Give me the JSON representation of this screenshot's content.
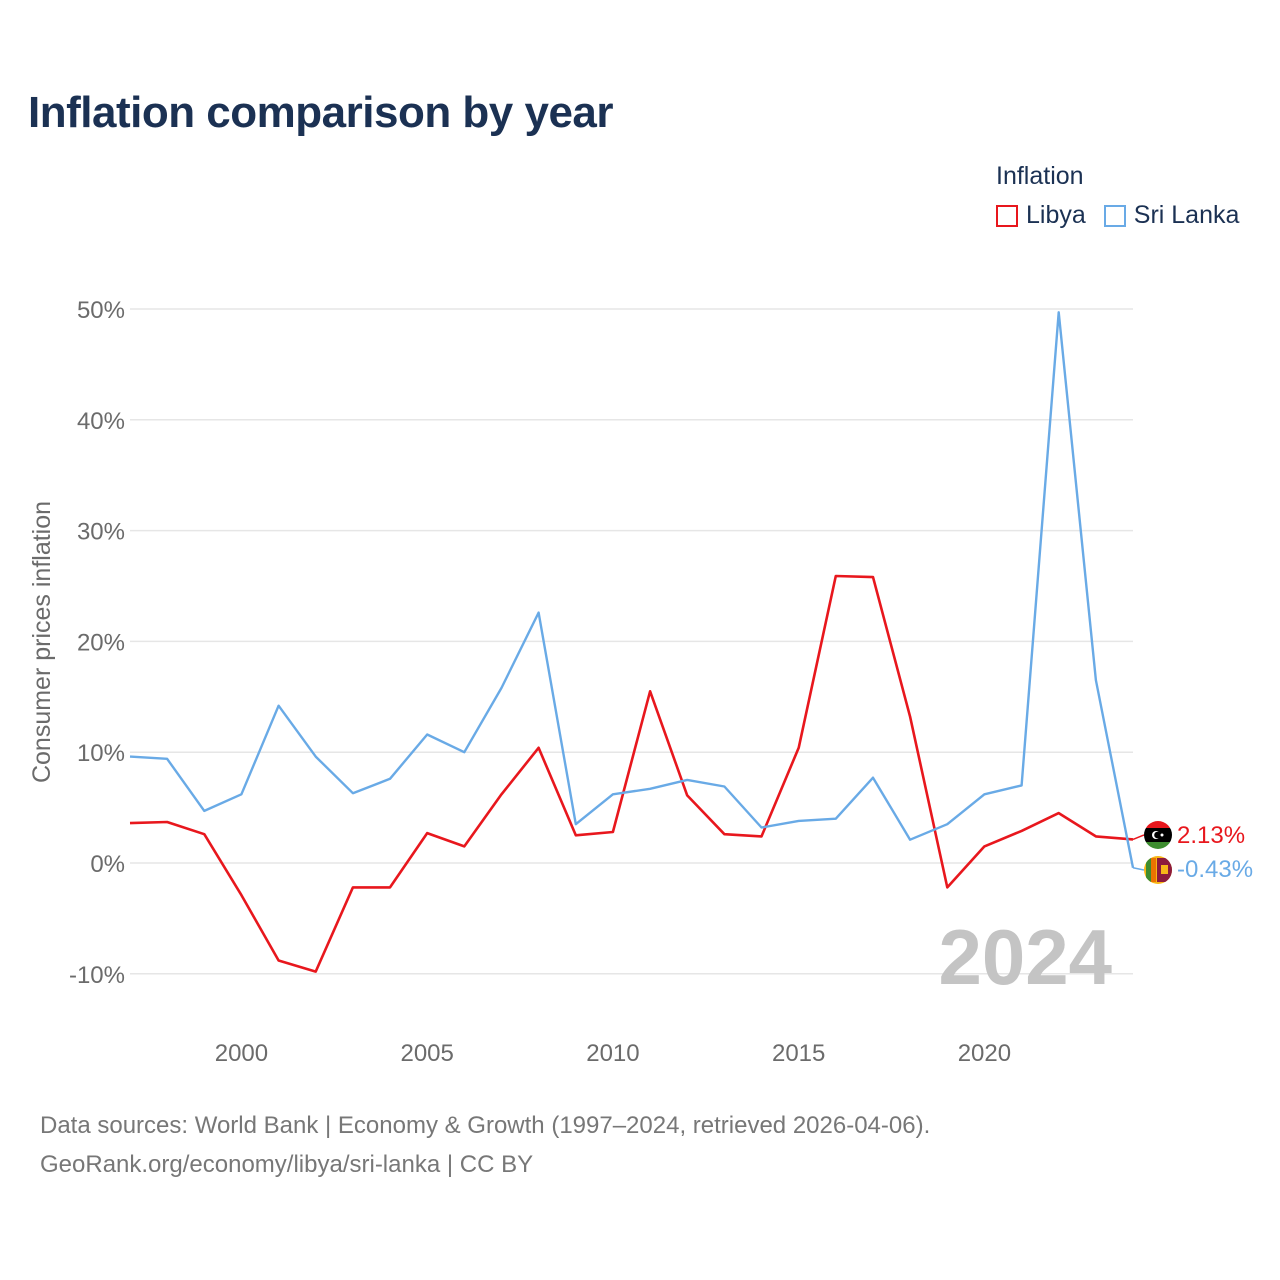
{
  "title": "Inflation comparison by year",
  "legend": {
    "title": "Inflation",
    "items": [
      {
        "name": "Libya",
        "color": "#e8171d"
      },
      {
        "name": "Sri Lanka",
        "color": "#69aae6"
      }
    ]
  },
  "chart_data": {
    "type": "line",
    "title": "Inflation comparison by year",
    "xlabel": "",
    "ylabel": "Consumer prices inflation",
    "xlim": [
      1997,
      2024
    ],
    "ylim": [
      -13,
      50
    ],
    "y_ticks": [
      -10,
      0,
      10,
      20,
      30,
      40,
      50
    ],
    "y_tick_labels": [
      "-10%",
      "0%",
      "10%",
      "20%",
      "30%",
      "40%",
      "50%"
    ],
    "x_ticks": [
      2000,
      2005,
      2010,
      2015,
      2020
    ],
    "x_tick_labels": [
      "2000",
      "2005",
      "2010",
      "2015",
      "2020"
    ],
    "grid": true,
    "year_watermark": "2024",
    "x": [
      1997,
      1998,
      1999,
      2000,
      2001,
      2002,
      2003,
      2004,
      2005,
      2006,
      2007,
      2008,
      2009,
      2010,
      2011,
      2012,
      2013,
      2014,
      2015,
      2016,
      2017,
      2018,
      2019,
      2020,
      2021,
      2022,
      2023,
      2024
    ],
    "series": [
      {
        "name": "Libya",
        "color": "#e8171d",
        "values": [
          3.6,
          3.7,
          2.6,
          -2.9,
          -8.8,
          -9.8,
          -2.2,
          -2.2,
          2.7,
          1.5,
          6.2,
          10.4,
          2.5,
          2.8,
          15.5,
          6.1,
          2.6,
          2.4,
          10.4,
          25.9,
          25.8,
          13.2,
          -2.2,
          1.5,
          2.9,
          4.5,
          2.4,
          2.13
        ],
        "end_label": "2.13%"
      },
      {
        "name": "Sri Lanka",
        "color": "#69aae6",
        "values": [
          9.6,
          9.4,
          4.7,
          6.2,
          14.2,
          9.6,
          6.3,
          7.6,
          11.6,
          10.0,
          15.8,
          22.6,
          3.5,
          6.2,
          6.7,
          7.5,
          6.9,
          3.2,
          3.8,
          4.0,
          7.7,
          2.1,
          3.5,
          6.2,
          7.0,
          49.7,
          16.5,
          -0.43
        ],
        "end_label": "-0.43%"
      }
    ]
  },
  "footer": {
    "line1": "Data sources: World Bank | Economy & Growth (1997–2024, retrieved 2026-04-06).",
    "line2": "GeoRank.org/economy/libya/sri-lanka | CC BY"
  }
}
